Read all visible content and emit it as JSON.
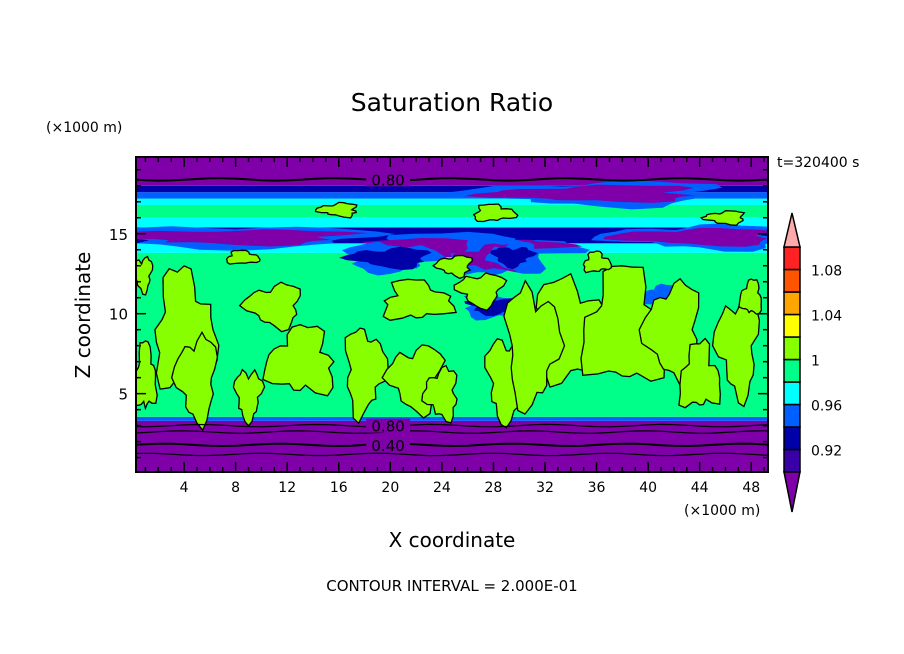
{
  "chart_data": {
    "type": "heatmap",
    "title": "Saturation Ratio",
    "xlabel": "X coordinate",
    "ylabel": "Z coordinate",
    "x_unit": "(×1000 m)",
    "y_unit": "(×1000 m)",
    "time_label": "t=320400 s",
    "footer": "CONTOUR INTERVAL = 2.000E-01",
    "xlim": [
      0.27,
      49.3
    ],
    "ylim": [
      0.1,
      19.8
    ],
    "xticks": [
      4,
      8,
      12,
      16,
      20,
      24,
      28,
      32,
      36,
      40,
      44,
      48
    ],
    "yticks": [
      5,
      10,
      15
    ],
    "contour_labels": [
      {
        "text": "0.80",
        "x": 17.5,
        "z": 18.4
      },
      {
        "text": "0.80",
        "x": 17.5,
        "z": 3.0
      },
      {
        "text": "0.40",
        "x": 17.5,
        "z": 1.8
      }
    ],
    "colorbar": {
      "levels": [
        0.9,
        0.92,
        0.94,
        0.96,
        0.98,
        1.0,
        1.02,
        1.04,
        1.06,
        1.08,
        1.1
      ],
      "colors": [
        "#7f00a8",
        "#3a00a8",
        "#0000a8",
        "#0060ff",
        "#00ffff",
        "#00ff88",
        "#88ff00",
        "#ffff00",
        "#ffa500",
        "#ff5500",
        "#ff2222",
        "#ffaaaa"
      ],
      "tick_labels": [
        {
          "value": 1.08,
          "text": "1.08"
        },
        {
          "value": 1.04,
          "text": "1.04"
        },
        {
          "value": 1.0,
          "text": "1"
        },
        {
          "value": 0.96,
          "text": "0.96"
        },
        {
          "value": 0.92,
          "text": "0.92"
        }
      ]
    },
    "bands": [
      {
        "z": [
          0.1,
          3.3
        ],
        "color": "#7f00a8"
      },
      {
        "z": [
          3.3,
          3.55
        ],
        "color": "#0060ff"
      },
      {
        "z": [
          3.55,
          13.8
        ],
        "color": "#00ff88"
      },
      {
        "z": [
          13.8,
          14.4
        ],
        "color": "#00ffff"
      },
      {
        "z": [
          14.4,
          15.4
        ],
        "color": "#0000a8"
      },
      {
        "z": [
          15.4,
          16.0
        ],
        "color": "#00ffff"
      },
      {
        "z": [
          16.0,
          16.8
        ],
        "color": "#00ff88"
      },
      {
        "z": [
          16.8,
          17.2
        ],
        "color": "#00ffff"
      },
      {
        "z": [
          17.2,
          17.6
        ],
        "color": "#0060ff"
      },
      {
        "z": [
          17.6,
          18.0
        ],
        "color": "#0000a8"
      },
      {
        "z": [
          18.0,
          19.8
        ],
        "color": "#7f00a8"
      }
    ],
    "dark_regions": [
      {
        "x": 8,
        "z": 14.8,
        "rx": 9,
        "rz": 0.45,
        "color": "#7f00a8"
      },
      {
        "x": 26,
        "z": 14.2,
        "rx": 7,
        "rz": 0.5,
        "color": "#7f00a8"
      },
      {
        "x": 20,
        "z": 13.5,
        "rx": 3,
        "rz": 0.6,
        "color": "#0000a8"
      },
      {
        "x": 28,
        "z": 13.5,
        "rx": 3,
        "rz": 0.8,
        "color": "#7f00a8"
      },
      {
        "x": 44,
        "z": 14.8,
        "rx": 6,
        "rz": 0.5,
        "color": "#7f00a8"
      },
      {
        "x": 29.5,
        "z": 13.6,
        "rx": 1.5,
        "rz": 0.6,
        "color": "#0000a8"
      },
      {
        "x": 28,
        "z": 10.5,
        "rx": 2,
        "rz": 0.5,
        "color": "#0000a8"
      },
      {
        "x": 41,
        "z": 11,
        "rx": 1.5,
        "rz": 0.5,
        "color": "#0060ff"
      },
      {
        "x": 36,
        "z": 17.5,
        "rx": 8,
        "rz": 0.5,
        "color": "#7f00a8"
      }
    ],
    "supersaturated_regions": [
      [
        4,
        9,
        2.2,
        3.5
      ],
      [
        5,
        6,
        1.5,
        2.5
      ],
      [
        11,
        10.5,
        2,
        1.3
      ],
      [
        13,
        7,
        2.5,
        2
      ],
      [
        18,
        6.5,
        1.5,
        2.5
      ],
      [
        22,
        10.8,
        2.5,
        1.2
      ],
      [
        22,
        6,
        2,
        2
      ],
      [
        25,
        13,
        1.3,
        0.6
      ],
      [
        27,
        11.5,
        1.7,
        1
      ],
      [
        29,
        6,
        1.5,
        2.5
      ],
      [
        34,
        9,
        2.8,
        3
      ],
      [
        38,
        9,
        3,
        3.5
      ],
      [
        42,
        9,
        2,
        3
      ],
      [
        44,
        6,
        1.5,
        2
      ],
      [
        47,
        8,
        1.5,
        3
      ],
      [
        31,
        8,
        2,
        3.5
      ],
      [
        8.5,
        13.5,
        1.2,
        0.4
      ],
      [
        16,
        16.5,
        1.5,
        0.4
      ],
      [
        28,
        16.3,
        1.5,
        0.5
      ],
      [
        46,
        16,
        1.5,
        0.4
      ],
      [
        0.8,
        12.5,
        0.7,
        1
      ],
      [
        1,
        6,
        0.8,
        2
      ],
      [
        36,
        13.2,
        1,
        0.6
      ],
      [
        48,
        11,
        0.8,
        1
      ],
      [
        9,
        5,
        1,
        1.5
      ],
      [
        24,
        5,
        1.2,
        1.5
      ]
    ]
  }
}
